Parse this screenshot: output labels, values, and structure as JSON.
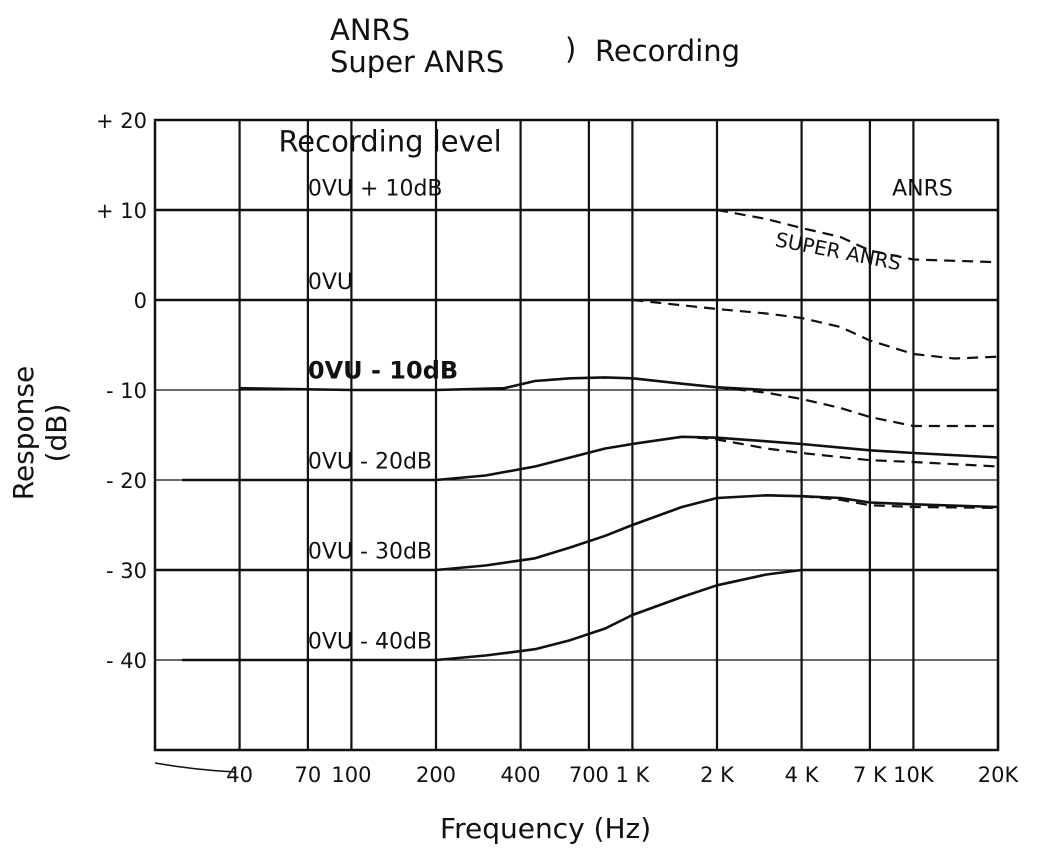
{
  "chart_data": {
    "type": "line",
    "title_lines": [
      "ANRS",
      "Super ANRS"
    ],
    "title_bracket": ")",
    "title_suffix": "Recording",
    "xlabel": "Frequency (Hz)",
    "ylabel": "Response (dB)",
    "x_scale": "log",
    "xlim": [
      20,
      20000
    ],
    "ylim": [
      -50,
      20
    ],
    "x_ticks": [
      {
        "value": 40,
        "label": "40"
      },
      {
        "value": 70,
        "label": "70"
      },
      {
        "value": 100,
        "label": "100"
      },
      {
        "value": 200,
        "label": "200"
      },
      {
        "value": 400,
        "label": "400"
      },
      {
        "value": 700,
        "label": "700"
      },
      {
        "value": 1000,
        "label": "1 K"
      },
      {
        "value": 2000,
        "label": "2 K"
      },
      {
        "value": 4000,
        "label": "4 K"
      },
      {
        "value": 7000,
        "label": "7 K"
      },
      {
        "value": 10000,
        "label": "10K"
      },
      {
        "value": 20000,
        "label": "20K"
      }
    ],
    "y_ticks": [
      {
        "value": 20,
        "label": "+ 20"
      },
      {
        "value": 10,
        "label": "+ 10"
      },
      {
        "value": 0,
        "label": "0"
      },
      {
        "value": -10,
        "label": "- 10"
      },
      {
        "value": -20,
        "label": "- 20"
      },
      {
        "value": -30,
        "label": "- 30"
      },
      {
        "value": -40,
        "label": "- 40"
      }
    ],
    "grid": true,
    "annotations": [
      {
        "text": "Recording level",
        "x": 55,
        "y": 16.5,
        "size": 29
      },
      {
        "text": "0VU + 10dB",
        "x": 70,
        "y": 11.6,
        "size": 22
      },
      {
        "text": "ANRS",
        "x": 8400,
        "y": 11.6,
        "size": 22
      },
      {
        "text": "SUPER ANRS",
        "x": 3200,
        "y": 6,
        "size": 20,
        "rotate": 11
      },
      {
        "text": "0VU",
        "x": 70,
        "y": 1.2,
        "size": 22
      },
      {
        "text": "0VU - 10dB",
        "x": 70,
        "y": -8.7,
        "size": 24,
        "bold": true
      },
      {
        "text": "0VU - 20dB",
        "x": 70,
        "y": -18.7,
        "size": 22
      },
      {
        "text": "0VU - 30dB",
        "x": 70,
        "y": -28.7,
        "size": 22
      },
      {
        "text": "0VU - 40dB",
        "x": 70,
        "y": -38.7,
        "size": 22
      }
    ],
    "series": [
      {
        "style": "solid",
        "points": [
          [
            20,
            10
          ],
          [
            1000,
            10
          ],
          [
            2000,
            10
          ],
          [
            4000,
            10
          ],
          [
            10000,
            10
          ],
          [
            20000,
            10
          ]
        ]
      },
      {
        "style": "dashed",
        "points": [
          [
            2000,
            10
          ],
          [
            3000,
            9
          ],
          [
            4000,
            8
          ],
          [
            5500,
            7
          ],
          [
            7000,
            5.5
          ],
          [
            10000,
            4.5
          ],
          [
            20000,
            4.2
          ]
        ]
      },
      {
        "style": "solid",
        "points": [
          [
            20,
            0
          ],
          [
            1000,
            0
          ],
          [
            20000,
            0
          ]
        ]
      },
      {
        "style": "dashed",
        "points": [
          [
            1000,
            0
          ],
          [
            2000,
            -1
          ],
          [
            3000,
            -1.5
          ],
          [
            4000,
            -2
          ],
          [
            5500,
            -3
          ],
          [
            7000,
            -4.5
          ],
          [
            10000,
            -6
          ],
          [
            14000,
            -6.5
          ],
          [
            20000,
            -6.3
          ]
        ]
      },
      {
        "style": "solid",
        "points": [
          [
            40,
            -9.8
          ],
          [
            100,
            -10
          ],
          [
            200,
            -10
          ],
          [
            350,
            -9.8
          ],
          [
            450,
            -9
          ],
          [
            600,
            -8.7
          ],
          [
            800,
            -8.6
          ],
          [
            1000,
            -8.7
          ],
          [
            1500,
            -9.3
          ],
          [
            2000,
            -9.7
          ],
          [
            3000,
            -10
          ],
          [
            20000,
            -10
          ]
        ]
      },
      {
        "style": "dashed",
        "points": [
          [
            2000,
            -9.7
          ],
          [
            3000,
            -10.3
          ],
          [
            4000,
            -11
          ],
          [
            5500,
            -12
          ],
          [
            7000,
            -13
          ],
          [
            10000,
            -14
          ],
          [
            20000,
            -14
          ]
        ]
      },
      {
        "style": "solid",
        "points": [
          [
            25,
            -20
          ],
          [
            100,
            -20
          ],
          [
            200,
            -20
          ],
          [
            300,
            -19.5
          ],
          [
            450,
            -18.5
          ],
          [
            600,
            -17.5
          ],
          [
            800,
            -16.5
          ],
          [
            1000,
            -16
          ],
          [
            1500,
            -15.2
          ],
          [
            2000,
            -15.3
          ],
          [
            3000,
            -15.7
          ],
          [
            4000,
            -16
          ],
          [
            7000,
            -16.7
          ],
          [
            10000,
            -17
          ],
          [
            20000,
            -17.5
          ]
        ]
      },
      {
        "style": "dashed",
        "points": [
          [
            1700,
            -15.3
          ],
          [
            2000,
            -15.5
          ],
          [
            3000,
            -16.5
          ],
          [
            4000,
            -17
          ],
          [
            7000,
            -17.8
          ],
          [
            10000,
            -18
          ],
          [
            20000,
            -18.5
          ]
        ]
      },
      {
        "style": "solid",
        "points": [
          [
            20,
            -30
          ],
          [
            100,
            -30
          ],
          [
            200,
            -30
          ],
          [
            300,
            -29.5
          ],
          [
            450,
            -28.7
          ],
          [
            600,
            -27.5
          ],
          [
            800,
            -26.2
          ],
          [
            1000,
            -25
          ],
          [
            1500,
            -23
          ],
          [
            2000,
            -22
          ],
          [
            3000,
            -21.7
          ],
          [
            4000,
            -21.8
          ],
          [
            5500,
            -22
          ],
          [
            7000,
            -22.5
          ],
          [
            10000,
            -22.7
          ],
          [
            20000,
            -23
          ]
        ]
      },
      {
        "style": "dashed",
        "points": [
          [
            3000,
            -21.7
          ],
          [
            4000,
            -21.8
          ],
          [
            5500,
            -22.2
          ],
          [
            7000,
            -22.8
          ],
          [
            10000,
            -23
          ],
          [
            20000,
            -23.1
          ]
        ]
      },
      {
        "style": "solid",
        "points": [
          [
            25,
            -40
          ],
          [
            100,
            -40
          ],
          [
            200,
            -40
          ],
          [
            300,
            -39.5
          ],
          [
            450,
            -38.8
          ],
          [
            600,
            -37.8
          ],
          [
            800,
            -36.5
          ],
          [
            1000,
            -35
          ],
          [
            1500,
            -33
          ],
          [
            2000,
            -31.7
          ],
          [
            3000,
            -30.5
          ],
          [
            4000,
            -30
          ],
          [
            20000,
            -30
          ]
        ]
      }
    ]
  }
}
